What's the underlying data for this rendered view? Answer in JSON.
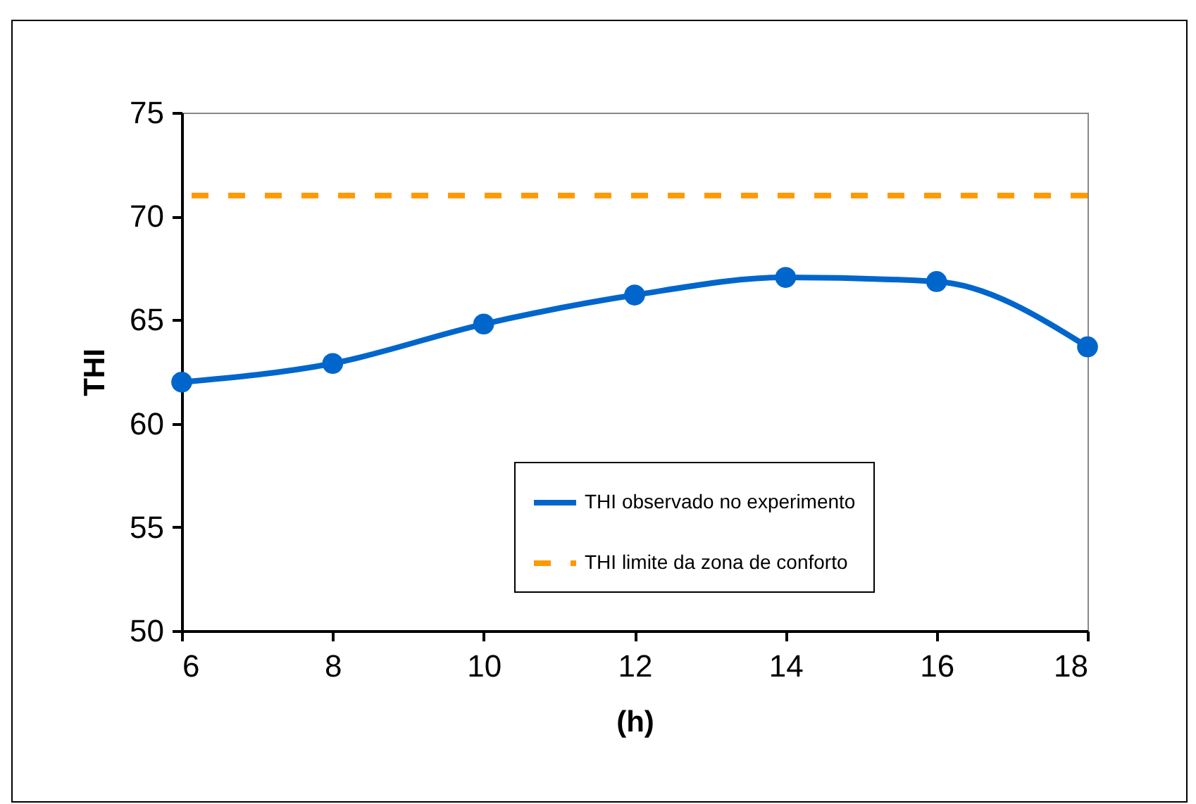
{
  "chart_data": {
    "type": "line",
    "xlabel": "(h)",
    "ylabel": "THI",
    "x": [
      6,
      8,
      10,
      12,
      14,
      16,
      18
    ],
    "series": [
      {
        "name": "THI observado no experimento",
        "color": "#0066cc",
        "values": [
          62.0,
          62.9,
          64.8,
          66.2,
          67.05,
          66.85,
          63.7
        ]
      }
    ],
    "ref_lines": [
      {
        "axis": "y",
        "value": 71,
        "label": "THI limite da zona de conforto",
        "color": "#ff9900",
        "line_style": "dashed"
      }
    ],
    "xlim": [
      6,
      18
    ],
    "xticks": [
      6,
      8,
      10,
      12,
      14,
      16,
      18
    ],
    "ylim": [
      50,
      75
    ],
    "yticks": [
      50,
      55,
      60,
      65,
      70,
      75
    ],
    "marker": "circle",
    "line_style": "solid",
    "legend": "bottom right"
  }
}
